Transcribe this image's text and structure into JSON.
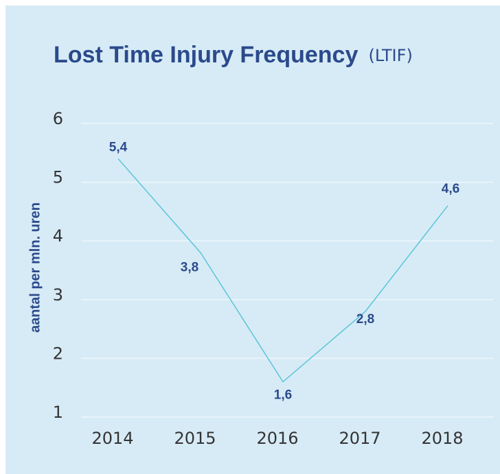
{
  "chart_data": {
    "type": "line",
    "title": "Lost Time Injury Frequency",
    "subtitle": "(LTIF)",
    "y_label": "aantal per mln. uren",
    "categories": [
      "2014",
      "2015",
      "2016",
      "2017",
      "2018"
    ],
    "values": [
      5.4,
      3.8,
      1.6,
      2.8,
      4.6
    ],
    "value_labels": [
      "5,4",
      "3,8",
      "1,6",
      "2,8",
      "4,6"
    ],
    "color": "#5bc5d8",
    "ylim": [
      1,
      6
    ],
    "yticks": [
      1,
      2,
      3,
      4,
      5,
      6
    ],
    "grid": true
  }
}
